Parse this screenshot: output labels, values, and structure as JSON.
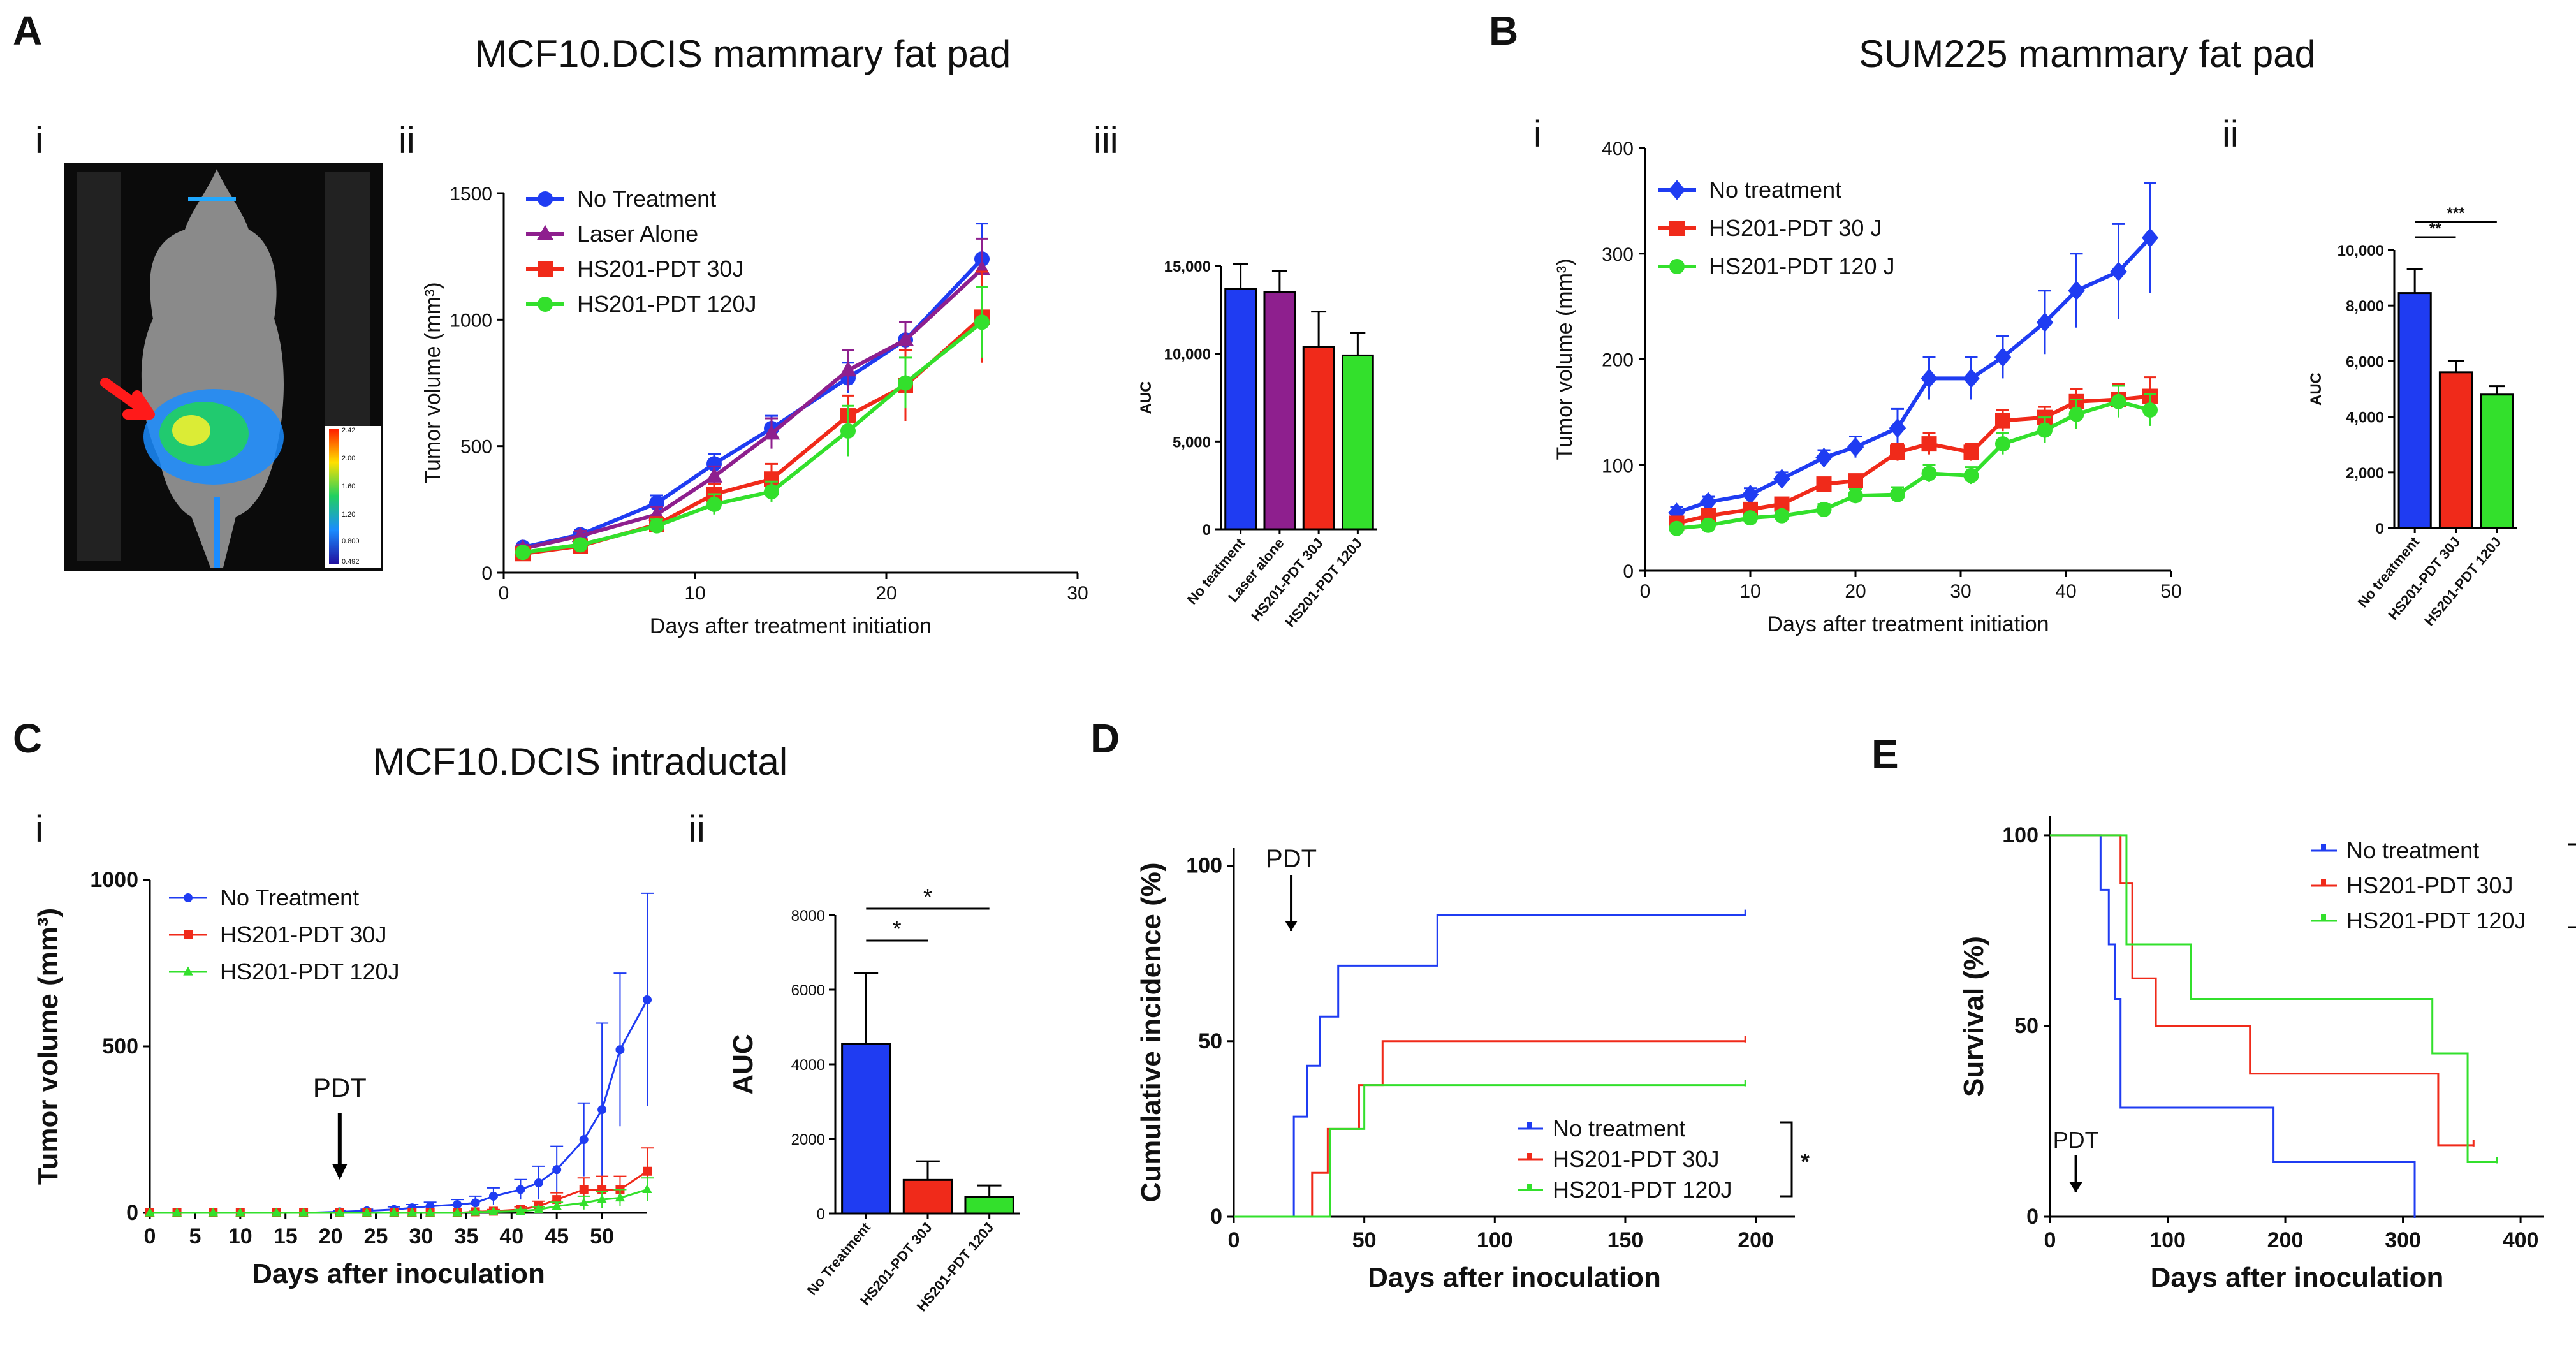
{
  "titles": {
    "a_panel": "A",
    "a_title": "MCF10.DCIS mammary fat pad",
    "b_panel": "B",
    "b_title": "SUM225 mammary fat pad",
    "c_panel": "C",
    "c_title": "MCF10.DCIS intraductal",
    "d_panel": "D",
    "e_panel": "E",
    "ai": "i",
    "aii": "ii",
    "aiii": "iii",
    "bi": "i",
    "bii": "ii",
    "ci": "i",
    "cii": "ii"
  },
  "mouse": {
    "scale_labels": [
      "2.42",
      "2.00",
      "1.60",
      "1.20",
      "0.800",
      "0.492"
    ]
  },
  "colors": {
    "blue": "#1f3cf2",
    "purple": "#8e1f8e",
    "red": "#f02a1a",
    "green": "#33e02c"
  },
  "chart_data": [
    {
      "id": "Aii",
      "type": "line",
      "xlabel": "Days after treatment initiation",
      "ylabel": "Tumor volume (mm³)",
      "xlim": [
        0,
        30
      ],
      "ylim": [
        0,
        1500
      ],
      "xticks": [
        0,
        10,
        20,
        30
      ],
      "yticks": [
        0,
        500,
        1000,
        1500
      ],
      "x": [
        1,
        4,
        8,
        11,
        14,
        18,
        21,
        25
      ],
      "series": [
        {
          "name": "No Treatment",
          "color": "#1f3cf2",
          "marker": "circle",
          "values": [
            100,
            150,
            275,
            430,
            570,
            770,
            920,
            1240
          ],
          "err": [
            15,
            20,
            30,
            40,
            50,
            60,
            70,
            140
          ]
        },
        {
          "name": "Laser Alone",
          "color": "#8e1f8e",
          "marker": "triangle",
          "values": [
            95,
            145,
            230,
            380,
            550,
            800,
            920,
            1200
          ],
          "err": [
            15,
            20,
            30,
            40,
            60,
            80,
            70,
            120
          ]
        },
        {
          "name": "HS201-PDT 30J",
          "color": "#f02a1a",
          "marker": "square",
          "values": [
            75,
            105,
            190,
            310,
            370,
            620,
            740,
            1010
          ],
          "err": [
            10,
            15,
            30,
            40,
            60,
            80,
            140,
            180
          ]
        },
        {
          "name": "HS201-PDT 120J",
          "color": "#33e02c",
          "marker": "circle",
          "values": [
            80,
            110,
            185,
            270,
            320,
            560,
            750,
            990
          ],
          "err": [
            10,
            15,
            25,
            40,
            40,
            100,
            100,
            140
          ]
        }
      ]
    },
    {
      "id": "Aiii",
      "type": "bar",
      "ylabel": "AUC",
      "ylim": [
        0,
        15000
      ],
      "yticks": [
        0,
        5000,
        10000,
        15000
      ],
      "ytick_labels": [
        "0",
        "5,000",
        "10,000",
        "15,000"
      ],
      "categories": [
        "No teatment",
        "Laser alone",
        "HS201-PDT 30J",
        "HS201-PDT 120J"
      ],
      "values": [
        13700,
        13500,
        10400,
        9900
      ],
      "err": [
        1400,
        1200,
        2000,
        1300
      ],
      "colors": [
        "#1f3cf2",
        "#8e1f8e",
        "#f02a1a",
        "#33e02c"
      ]
    },
    {
      "id": "Bi",
      "type": "line",
      "xlabel": "Days after treatment initiation",
      "ylabel": "Tumor volume (mm³)",
      "xlim": [
        0,
        50
      ],
      "ylim": [
        0,
        400
      ],
      "xticks": [
        0,
        10,
        20,
        30,
        40,
        50
      ],
      "yticks": [
        0,
        100,
        200,
        300,
        400
      ],
      "x": [
        3,
        6,
        10,
        13,
        17,
        20,
        24,
        27,
        31,
        34,
        38,
        41,
        45,
        48
      ],
      "series": [
        {
          "name": "No treatment",
          "color": "#1f3cf2",
          "marker": "diamond",
          "values": [
            55,
            65,
            72,
            87,
            107,
            117,
            135,
            182,
            182,
            202,
            235,
            265,
            283,
            315
          ],
          "err": [
            5,
            5,
            6,
            6,
            7,
            10,
            18,
            20,
            20,
            20,
            30,
            35,
            45,
            52
          ]
        },
        {
          "name": "HS201-PDT 30 J",
          "color": "#f02a1a",
          "marker": "square",
          "values": [
            45,
            52,
            58,
            63,
            82,
            85,
            112,
            120,
            112,
            142,
            145,
            160,
            162,
            165
          ],
          "err": [
            5,
            5,
            5,
            5,
            6,
            6,
            8,
            10,
            8,
            10,
            10,
            12,
            15,
            18
          ]
        },
        {
          "name": "HS201-PDT 120 J",
          "color": "#33e02c",
          "marker": "circle",
          "values": [
            40,
            43,
            50,
            52,
            58,
            71,
            72,
            92,
            90,
            120,
            133,
            148,
            160,
            152
          ],
          "err": [
            4,
            4,
            4,
            4,
            5,
            6,
            7,
            8,
            8,
            10,
            12,
            14,
            15,
            15
          ]
        }
      ]
    },
    {
      "id": "Bii",
      "type": "bar",
      "ylabel": "AUC",
      "ylim": [
        0,
        10000
      ],
      "yticks": [
        0,
        2000,
        4000,
        6000,
        8000,
        10000
      ],
      "ytick_labels": [
        "0",
        "2,000",
        "4,000",
        "6,000",
        "8,000",
        "10,000"
      ],
      "categories": [
        "No treatment",
        "HS201-PDT 30J",
        "HS201-PDT 120J"
      ],
      "values": [
        8450,
        5600,
        4800
      ],
      "err": [
        850,
        400,
        300
      ],
      "colors": [
        "#1f3cf2",
        "#f02a1a",
        "#33e02c"
      ],
      "significance": [
        "**",
        "***"
      ]
    },
    {
      "id": "Ci",
      "type": "line",
      "xlabel": "Days after inoculation",
      "ylabel": "Tumor volume (mm³)",
      "xlim": [
        0,
        55
      ],
      "ylim": [
        0,
        1000
      ],
      "xticks": [
        0,
        5,
        10,
        15,
        20,
        25,
        30,
        35,
        40,
        45,
        50
      ],
      "yticks": [
        0,
        500,
        1000
      ],
      "x": [
        0,
        3,
        7,
        10,
        14,
        17,
        21,
        24,
        27,
        29,
        31,
        34,
        36,
        38,
        41,
        43,
        45,
        48,
        50,
        52,
        55
      ],
      "annotation": "PDT",
      "annotation_x": 21,
      "series": [
        {
          "name": "No Treatment",
          "color": "#1f3cf2",
          "values": [
            0,
            0,
            0,
            0,
            0,
            0,
            3,
            6,
            10,
            15,
            20,
            25,
            30,
            50,
            70,
            90,
            130,
            220,
            310,
            490,
            640
          ],
          "err": [
            0,
            0,
            0,
            0,
            0,
            0,
            3,
            5,
            8,
            10,
            12,
            15,
            20,
            25,
            30,
            50,
            70,
            110,
            260,
            230,
            320
          ]
        },
        {
          "name": "HS201-PDT 30J",
          "color": "#f02a1a",
          "values": [
            0,
            0,
            0,
            0,
            0,
            0,
            0,
            0,
            0,
            0,
            0,
            0,
            3,
            5,
            10,
            20,
            40,
            70,
            70,
            70,
            125
          ],
          "err": [
            0,
            0,
            0,
            0,
            0,
            0,
            0,
            0,
            0,
            0,
            0,
            0,
            2,
            5,
            8,
            15,
            20,
            35,
            40,
            40,
            70
          ]
        },
        {
          "name": "HS201-PDT 120J",
          "color": "#33e02c",
          "values": [
            0,
            0,
            0,
            0,
            0,
            0,
            0,
            0,
            0,
            0,
            0,
            0,
            2,
            3,
            5,
            10,
            20,
            30,
            40,
            45,
            70
          ],
          "err": [
            0,
            0,
            0,
            0,
            0,
            0,
            0,
            0,
            0,
            0,
            0,
            0,
            2,
            3,
            5,
            8,
            12,
            20,
            25,
            25,
            35
          ]
        }
      ]
    },
    {
      "id": "Cii",
      "type": "bar",
      "ylabel": "AUC",
      "ylim": [
        0,
        8000
      ],
      "yticks": [
        0,
        2000,
        4000,
        6000,
        8000
      ],
      "ytick_labels": [
        "0",
        "2000",
        "4000",
        "6000",
        "8000"
      ],
      "categories": [
        "No Treatment",
        "HS201-PDT 30J",
        "HS201-PDT 120J"
      ],
      "values": [
        4550,
        900,
        450
      ],
      "err": [
        1900,
        500,
        300
      ],
      "colors": [
        "#1f3cf2",
        "#f02a1a",
        "#33e02c"
      ],
      "significance": [
        "*",
        "*"
      ]
    },
    {
      "id": "D",
      "type": "step",
      "xlabel": "Days after inoculation",
      "ylabel": "Cumulative incidence (%)",
      "xlim": [
        0,
        215
      ],
      "ylim": [
        0,
        105
      ],
      "xticks": [
        0,
        50,
        100,
        150,
        200
      ],
      "yticks": [
        0,
        50,
        100
      ],
      "annotation": "PDT",
      "annotation_x": 22,
      "significance": "*",
      "series": [
        {
          "name": "No treatment",
          "color": "#1f3cf2",
          "steps": [
            [
              0,
              0
            ],
            [
              23,
              0
            ],
            [
              23,
              28.5
            ],
            [
              28,
              28.5
            ],
            [
              28,
              43
            ],
            [
              33,
              43
            ],
            [
              33,
              57
            ],
            [
              40,
              57
            ],
            [
              40,
              71.5
            ],
            [
              78,
              71.5
            ],
            [
              78,
              86
            ],
            [
              196,
              86
            ]
          ]
        },
        {
          "name": "HS201-PDT 30J",
          "color": "#f02a1a",
          "steps": [
            [
              0,
              0
            ],
            [
              30,
              0
            ],
            [
              30,
              12.5
            ],
            [
              36,
              12.5
            ],
            [
              36,
              25
            ],
            [
              48,
              25
            ],
            [
              48,
              37.5
            ],
            [
              57,
              37.5
            ],
            [
              57,
              50
            ],
            [
              196,
              50
            ]
          ]
        },
        {
          "name": "HS201-PDT 120J",
          "color": "#33e02c",
          "steps": [
            [
              0,
              0
            ],
            [
              37,
              0
            ],
            [
              37,
              25
            ],
            [
              50,
              25
            ],
            [
              50,
              37.5
            ],
            [
              196,
              37.5
            ]
          ]
        }
      ]
    },
    {
      "id": "E",
      "type": "step",
      "xlabel": "Days after inoculation",
      "ylabel": "Survival (%)",
      "xlim": [
        0,
        420
      ],
      "ylim": [
        0,
        105
      ],
      "xticks": [
        0,
        100,
        200,
        300,
        400
      ],
      "yticks": [
        0,
        50,
        100
      ],
      "annotation": "PDT",
      "annotation_x": 22,
      "significance": "*",
      "series": [
        {
          "name": "No treatment",
          "color": "#1f3cf2",
          "steps": [
            [
              0,
              100
            ],
            [
              43,
              100
            ],
            [
              43,
              85.7
            ],
            [
              50,
              85.7
            ],
            [
              50,
              71.4
            ],
            [
              55,
              71.4
            ],
            [
              55,
              57.1
            ],
            [
              60,
              57.1
            ],
            [
              60,
              28.6
            ],
            [
              190,
              28.6
            ],
            [
              190,
              14.3
            ],
            [
              310,
              14.3
            ],
            [
              310,
              0
            ]
          ]
        },
        {
          "name": "HS201-PDT 30J",
          "color": "#f02a1a",
          "steps": [
            [
              0,
              100
            ],
            [
              60,
              100
            ],
            [
              60,
              87.5
            ],
            [
              70,
              87.5
            ],
            [
              70,
              62.5
            ],
            [
              90,
              62.5
            ],
            [
              90,
              50
            ],
            [
              170,
              50
            ],
            [
              170,
              37.5
            ],
            [
              330,
              37.5
            ],
            [
              330,
              18.75
            ],
            [
              360,
              18.75
            ]
          ]
        },
        {
          "name": "HS201-PDT 120J",
          "color": "#33e02c",
          "steps": [
            [
              0,
              100
            ],
            [
              65,
              100
            ],
            [
              65,
              71.4
            ],
            [
              120,
              71.4
            ],
            [
              120,
              57.1
            ],
            [
              325,
              57.1
            ],
            [
              325,
              42.8
            ],
            [
              355,
              42.8
            ],
            [
              355,
              14.3
            ],
            [
              380,
              14.3
            ]
          ]
        }
      ]
    }
  ]
}
